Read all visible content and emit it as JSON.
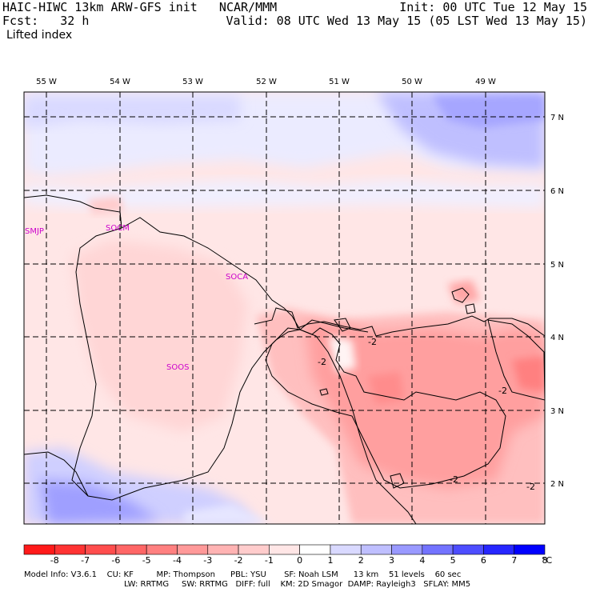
{
  "header": {
    "title": "HAIC-HIWC 13km ARW-GFS init   NCAR/MMM",
    "init": "Init: 00 UTC Tue 12 May 15",
    "fcst": "Fcst:   32 h",
    "valid": "Valid: 08 UTC Wed 13 May 15 (05 LST Wed 13 May 15)",
    "field": "Lifted index"
  },
  "map": {
    "lon_labels": [
      "55 W",
      "54 W",
      "53 W",
      "52 W",
      "51 W",
      "50 W",
      "49 W"
    ],
    "lat_labels": [
      "7 N",
      "6 N",
      "5 N",
      "4 N",
      "3 N",
      "2 N"
    ],
    "stations": [
      "SMJP",
      "SOCM",
      "SOCA",
      "SOOS"
    ],
    "contour_labels": [
      "-2",
      "-2",
      "-2",
      "-2",
      "-2"
    ]
  },
  "colorbar": {
    "levels": [
      "-8",
      "-7",
      "-6",
      "-5",
      "-4",
      "-3",
      "-2",
      "-1",
      "0",
      "1",
      "2",
      "3",
      "4",
      "5",
      "6",
      "7",
      "8"
    ],
    "unit": "°C",
    "colors": [
      "#ff1a1a",
      "#ff3333",
      "#ff4d4d",
      "#ff6666",
      "#ff8080",
      "#ff9999",
      "#ffb3b3",
      "#ffcccc",
      "#ffe6e6",
      "#ffffff",
      "#d9d9ff",
      "#bfbfff",
      "#9999ff",
      "#7373ff",
      "#4d4dff",
      "#2626ff",
      "#0000ff"
    ]
  },
  "footer": {
    "line1": "Model Info: V3.6.1    CU: KF         MP: Thompson      PBL: YSU       SF: Noah LSM      13 km    51 levels    60 sec",
    "line2": "LW: RRTMG     SW: RRTMG   DIFF: full    KM: 2D Smagor  DAMP: Rayleigh3   SFLAY: MM5"
  }
}
